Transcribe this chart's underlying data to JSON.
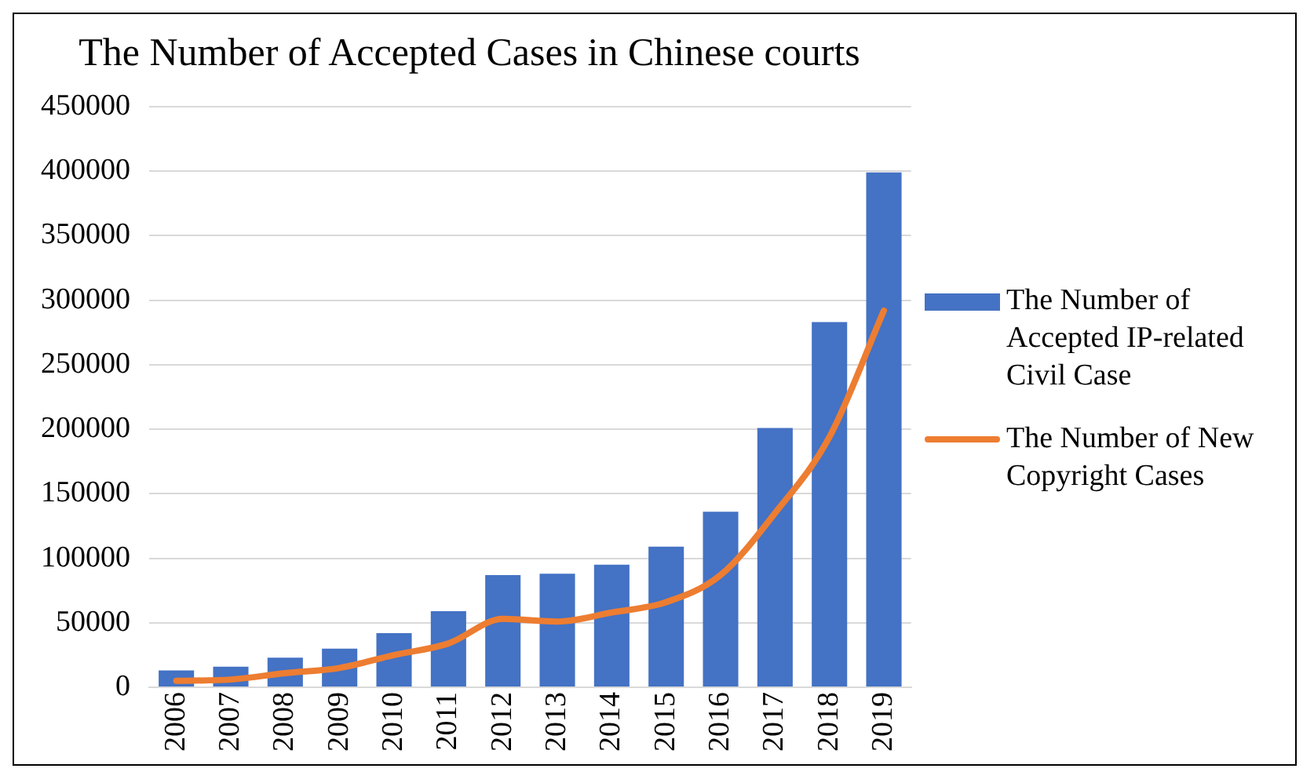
{
  "chart_data": {
    "type": "bar",
    "title": "The Number of Accepted Cases in Chinese courts",
    "categories": [
      "2006",
      "2007",
      "2008",
      "2009",
      "2010",
      "2011",
      "2012",
      "2013",
      "2014",
      "2015",
      "2016",
      "2017",
      "2018",
      "2019"
    ],
    "series": [
      {
        "name": "The Number of Accepted IP-related Civil Case",
        "color": "#4472c4",
        "values": [
          13000,
          16000,
          23000,
          30000,
          42000,
          59000,
          87000,
          88000,
          95000,
          109000,
          136000,
          201000,
          283000,
          399000
        ]
      },
      {
        "name": "The Number of New Copyright Cases",
        "type": "line",
        "color": "#ed7d31",
        "values": [
          5000,
          6000,
          11000,
          15000,
          25000,
          34000,
          53000,
          51000,
          58000,
          66000,
          87000,
          135000,
          194000,
          292000
        ]
      }
    ],
    "ylim": [
      0,
      450000
    ],
    "yticks": [
      0,
      50000,
      100000,
      150000,
      200000,
      250000,
      300000,
      350000,
      400000,
      450000
    ],
    "grid": "y",
    "legend": "right"
  }
}
